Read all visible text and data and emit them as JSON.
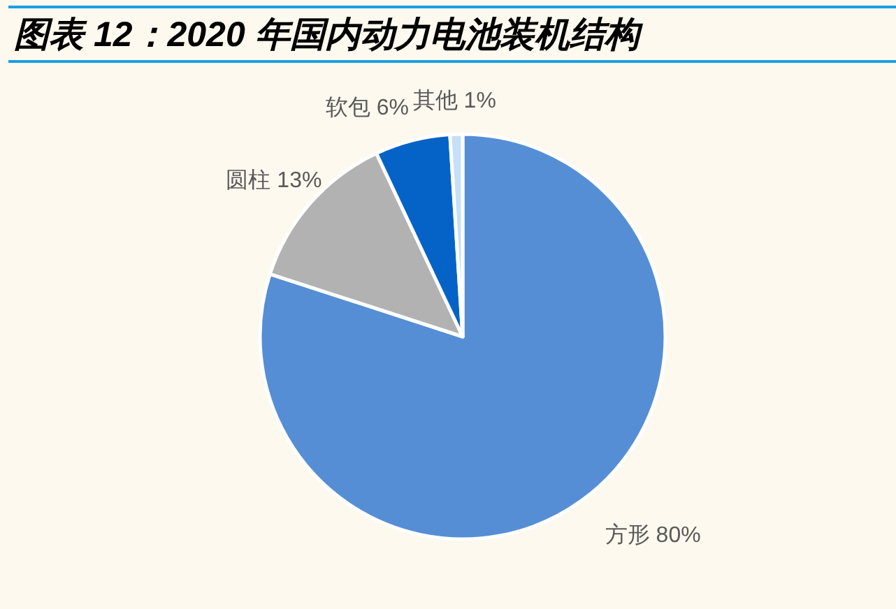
{
  "chart_data": {
    "type": "pie",
    "title": "图表 12：2020 年国内动力电池装机结构",
    "categories": [
      "方形",
      "圆柱",
      "软包",
      "其他"
    ],
    "values": [
      80,
      13,
      6,
      1
    ],
    "colors": [
      "#558ed5",
      "#b2b2b2",
      "#0563c7",
      "#c5e0f7"
    ],
    "value_labels": [
      "80%",
      "13%",
      "6%",
      "1%"
    ]
  }
}
